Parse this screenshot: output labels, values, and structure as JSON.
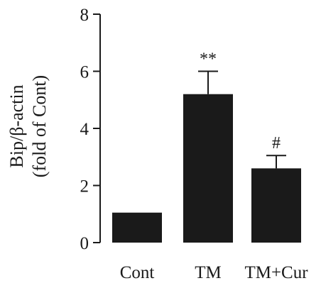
{
  "chart_data": {
    "type": "bar",
    "categories": [
      "Cont",
      "TM",
      "TM+Cur"
    ],
    "values": [
      1.05,
      5.2,
      2.6
    ],
    "errors": [
      0,
      0.8,
      0.45
    ],
    "annotations": [
      "",
      "**",
      "#"
    ],
    "ylabel_line1": "Bip/β-actin",
    "ylabel_line2": "(fold of Cont)",
    "xlabel": "",
    "ylim": [
      0,
      8
    ],
    "yticks": [
      0,
      2,
      4,
      6,
      8
    ],
    "grid": false,
    "bar_color": "#1a1a1a"
  }
}
